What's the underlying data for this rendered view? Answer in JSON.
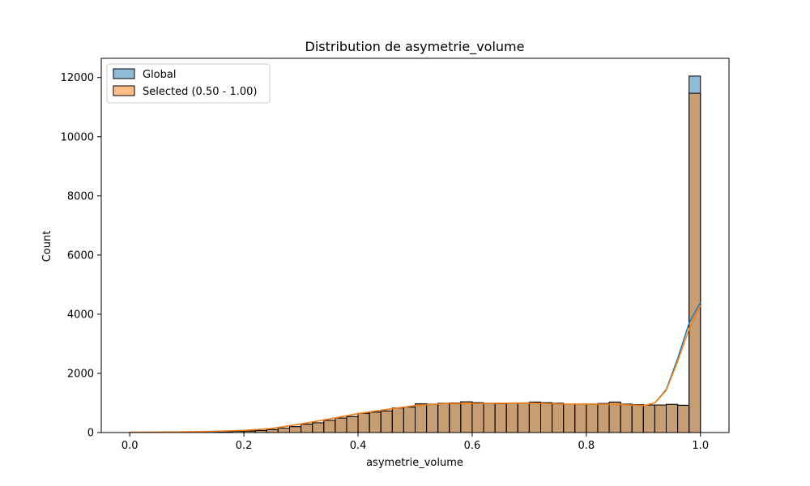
{
  "chart_data": {
    "type": "bar",
    "title": "Distribution de asymetrie_volume",
    "xlabel": "asymetrie_volume",
    "ylabel": "Count",
    "xlim": [
      -0.05,
      1.05
    ],
    "ylim": [
      0,
      12650
    ],
    "xticks": [
      0.0,
      0.2,
      0.4,
      0.6,
      0.8,
      1.0
    ],
    "xtick_labels": [
      "0.0",
      "0.2",
      "0.4",
      "0.6",
      "0.8",
      "1.0"
    ],
    "yticks": [
      0,
      2000,
      4000,
      6000,
      8000,
      10000,
      12000
    ],
    "ytick_labels": [
      "0",
      "2000",
      "4000",
      "6000",
      "8000",
      "10000",
      "12000"
    ],
    "grid": false,
    "legend_position": "upper-left",
    "bin_edges": [
      0.0,
      0.02,
      0.04,
      0.06,
      0.08,
      0.1,
      0.12,
      0.14,
      0.16,
      0.18,
      0.2,
      0.22,
      0.24,
      0.26,
      0.28,
      0.3,
      0.32,
      0.34,
      0.36,
      0.38,
      0.4,
      0.42,
      0.44,
      0.46,
      0.48,
      0.5,
      0.52,
      0.54,
      0.56,
      0.58,
      0.6,
      0.62,
      0.64,
      0.66,
      0.68,
      0.7,
      0.72,
      0.74,
      0.76,
      0.78,
      0.8,
      0.82,
      0.84,
      0.86,
      0.88,
      0.9,
      0.92,
      0.94,
      0.96,
      0.98,
      1.0
    ],
    "series": [
      {
        "name": "Global",
        "color": "#1f77b4",
        "values": [
          10,
          5,
          5,
          8,
          10,
          15,
          20,
          25,
          30,
          40,
          50,
          70,
          100,
          150,
          200,
          280,
          330,
          410,
          490,
          540,
          650,
          690,
          730,
          830,
          860,
          970,
          960,
          990,
          1000,
          1040,
          1010,
          990,
          980,
          990,
          990,
          1030,
          1010,
          990,
          960,
          970,
          960,
          980,
          1030,
          960,
          940,
          930,
          930,
          950,
          920,
          12050
        ]
      },
      {
        "name": "Selected (0.50 - 1.00)",
        "color": "#ff7f0e",
        "values": [
          10,
          5,
          5,
          8,
          10,
          15,
          20,
          25,
          30,
          40,
          50,
          70,
          100,
          150,
          200,
          280,
          330,
          410,
          490,
          540,
          650,
          690,
          730,
          830,
          860,
          970,
          960,
          990,
          1000,
          1040,
          1010,
          990,
          980,
          990,
          990,
          1030,
          1010,
          990,
          960,
          970,
          960,
          980,
          1030,
          960,
          940,
          930,
          930,
          950,
          920,
          11470
        ]
      }
    ],
    "kde": {
      "x": [
        0.0,
        0.05,
        0.1,
        0.15,
        0.2,
        0.25,
        0.3,
        0.35,
        0.4,
        0.45,
        0.5,
        0.55,
        0.6,
        0.65,
        0.7,
        0.75,
        0.8,
        0.85,
        0.9,
        0.92,
        0.94,
        0.96,
        0.98,
        1.0
      ],
      "global": [
        10,
        15,
        25,
        40,
        70,
        140,
        290,
        460,
        640,
        780,
        910,
        980,
        980,
        990,
        1000,
        970,
        960,
        950,
        910,
        1000,
        1450,
        2500,
        3700,
        4400
      ],
      "selected": [
        10,
        15,
        25,
        40,
        70,
        140,
        290,
        460,
        640,
        780,
        910,
        980,
        980,
        990,
        1000,
        970,
        960,
        950,
        910,
        1000,
        1420,
        2400,
        3500,
        4300
      ]
    }
  }
}
